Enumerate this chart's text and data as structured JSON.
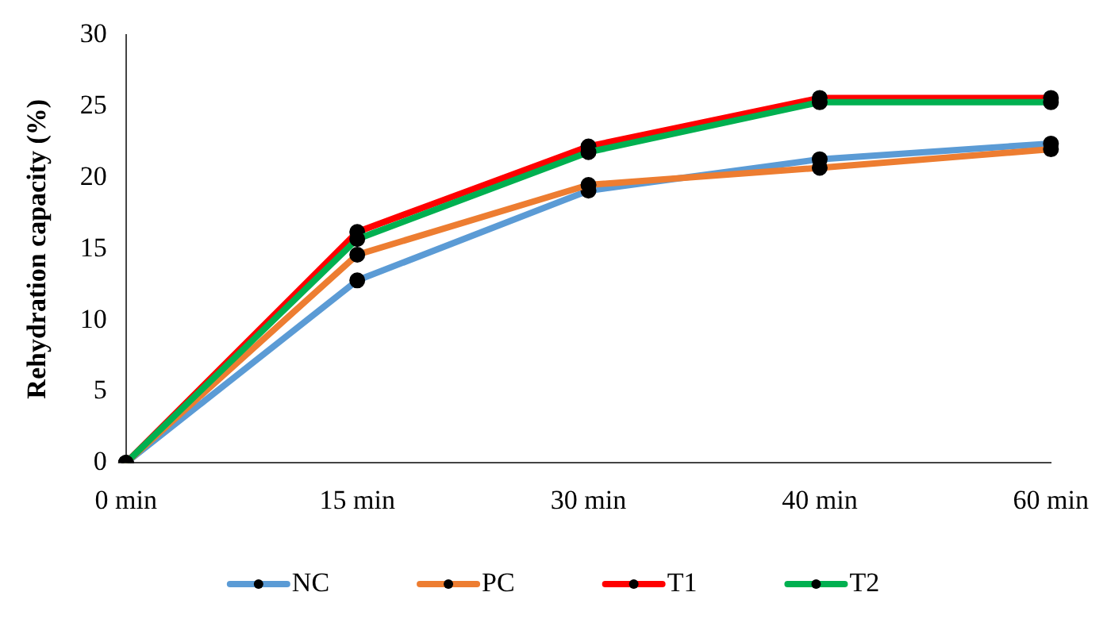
{
  "chart_data": {
    "type": "line",
    "ylabel": "Rehydration capacity (%)",
    "categories": [
      "0 min",
      "15 min",
      "30 min",
      "40 min",
      "60 min"
    ],
    "series": [
      {
        "name": "NC",
        "color": "#5b9bd5",
        "values": [
          0,
          12.8,
          19.1,
          21.3,
          22.4
        ]
      },
      {
        "name": "PC",
        "color": "#ed7d31",
        "values": [
          0,
          14.6,
          19.5,
          20.7,
          22.0
        ]
      },
      {
        "name": "T1",
        "color": "#ff0000",
        "values": [
          0,
          16.2,
          22.2,
          25.6,
          25.6
        ]
      },
      {
        "name": "T2",
        "color": "#00b050",
        "values": [
          0,
          15.7,
          21.8,
          25.3,
          25.3
        ]
      }
    ],
    "ylim": [
      0,
      30
    ],
    "yticks": [
      0,
      5,
      10,
      15,
      20,
      25,
      30
    ],
    "grid": false,
    "legend": "bottom",
    "marker": "circle",
    "line_style": "solid"
  }
}
